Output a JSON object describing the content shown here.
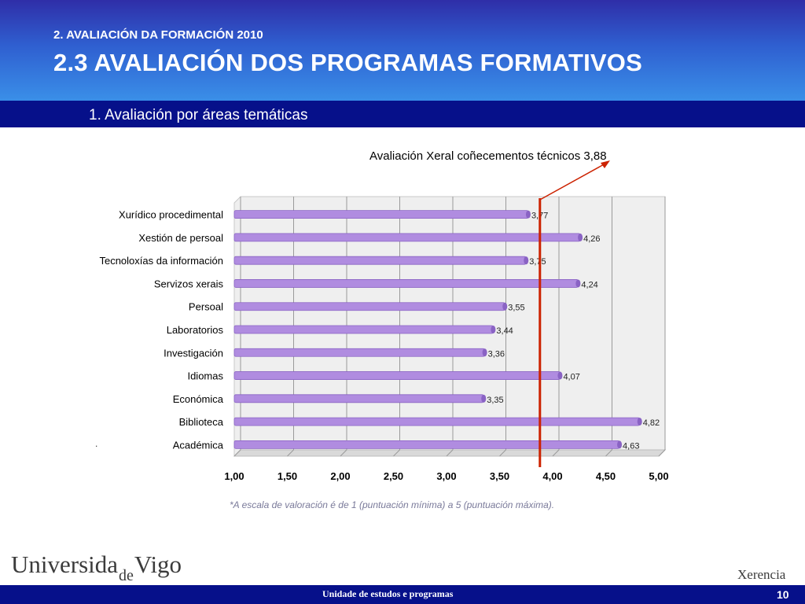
{
  "header": {
    "kicker": "2. AVALIACIÓN DA FORMACIÓN 2010",
    "title": "2.3 AVALIACIÓN DOS PROGRAMAS FORMATIVOS"
  },
  "section": {
    "label": "1. Avaliación por áreas temáticas"
  },
  "annotation": {
    "text": "Avaliación Xeral coñecementos técnicos 3,88"
  },
  "footnote": "*A escala de valoración é de 1 (puntuación mínima) a 5 (puntuación máxima).",
  "dot": ".",
  "footer": {
    "logo_univ_a": "Universida",
    "logo_univ_b": "de",
    "logo_univ_c": "Vigo",
    "logo_xerencia": "Xerencia",
    "unit": "Unidade de estudos e programas",
    "page": "10"
  },
  "colors": {
    "bar": "#b08ce0",
    "bar_dark": "#8a63c4",
    "reference_line": "#cc2200",
    "header_blue": "#2f5fd0",
    "navy": "#06108a"
  },
  "chart_data": {
    "type": "bar",
    "orientation": "horizontal",
    "categories": [
      "Xurídico procedimental",
      "Xestión de persoal",
      "Tecnoloxías da información",
      "Servizos xerais",
      "Persoal",
      "Laboratorios",
      "Investigación",
      "Idiomas",
      "Económica",
      "Biblioteca",
      "Académica"
    ],
    "values": [
      3.77,
      4.26,
      3.75,
      4.24,
      3.55,
      3.44,
      3.36,
      4.07,
      3.35,
      4.82,
      4.63
    ],
    "value_labels": [
      "3,77",
      "4,26",
      "3,75",
      "4,24",
      "3,55",
      "3,44",
      "3,36",
      "4,07",
      "3,35",
      "4,82",
      "4,63"
    ],
    "xlim": [
      1.0,
      5.0
    ],
    "xticks": [
      1.0,
      1.5,
      2.0,
      2.5,
      3.0,
      3.5,
      4.0,
      4.5,
      5.0
    ],
    "xtick_labels": [
      "1,00",
      "1,50",
      "2,00",
      "2,50",
      "3,00",
      "3,50",
      "4,00",
      "4,50",
      "5,00"
    ],
    "reference_line": {
      "value": 3.88
    },
    "grid": true,
    "legend": "none"
  }
}
